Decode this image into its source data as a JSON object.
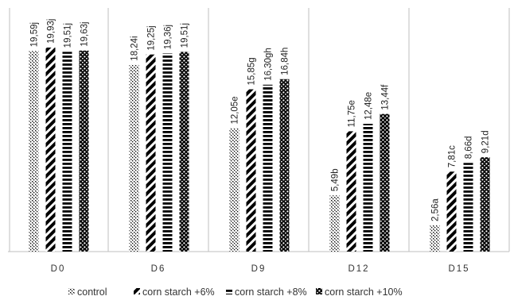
{
  "chart_data": {
    "type": "bar",
    "title": "",
    "xlabel": "",
    "ylabel": "",
    "ylim": [
      0,
      22
    ],
    "grid": "vertical separators between groups",
    "legend_position": "bottom",
    "categories": [
      "D0",
      "D6",
      "D9",
      "D12",
      "D15"
    ],
    "series": [
      {
        "name": "control",
        "pattern": "diagonal-dots",
        "values": [
          19.59,
          18.24,
          12.05,
          5.49,
          2.56
        ],
        "labels": [
          "19,59j",
          "18,24i",
          "12,05e",
          "5,49b",
          "2,56a"
        ]
      },
      {
        "name": "corn starch +6%",
        "pattern": "wide-diagonal",
        "values": [
          19.93,
          19.25,
          15.85,
          11.75,
          7.81
        ],
        "labels": [
          "19,93j",
          "19,25j",
          "15,85g",
          "11,75e",
          "7,81c"
        ]
      },
      {
        "name": "corn starch +8%",
        "pattern": "horizontal-dashes",
        "values": [
          19.51,
          19.36,
          16.3,
          12.48,
          8.66
        ],
        "labels": [
          "19,51j",
          "19,36j",
          "16,30gh",
          "12,48e",
          "8,66d"
        ]
      },
      {
        "name": "corn starch +10%",
        "pattern": "large-dots",
        "values": [
          19.63,
          19.51,
          16.84,
          13.44,
          9.21
        ],
        "labels": [
          "19,63j",
          "19,51j",
          "16,84h",
          "13,44f",
          "9,21d"
        ]
      }
    ]
  },
  "colors": {
    "ink": "#000000",
    "axis": "#bfbfbf",
    "text": "#333333"
  }
}
